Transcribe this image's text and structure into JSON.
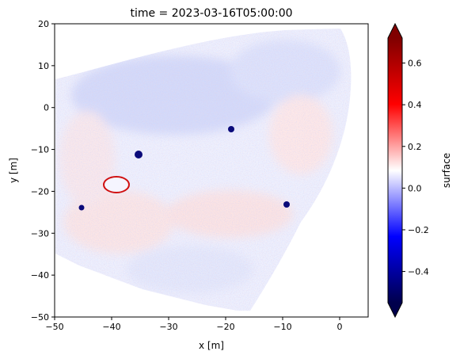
{
  "chart_data": {
    "type": "heatmap",
    "title": "time = 2023-03-16T05:00:00",
    "xlabel": "x [m]",
    "ylabel": "y [m]",
    "xlim": [
      -50,
      5
    ],
    "ylim": [
      -50,
      20
    ],
    "xticks": [
      -50,
      -40,
      -30,
      -20,
      -10,
      0
    ],
    "yticks": [
      -50,
      -40,
      -30,
      -20,
      -10,
      0,
      10,
      20
    ],
    "colorbar": {
      "label": "surface",
      "colormap": "seismic",
      "vmin": -0.55,
      "vmax": 0.72,
      "ticks": [
        -0.4,
        -0.2,
        0.0,
        0.2,
        0.4,
        0.6
      ],
      "extend": "both",
      "colors": [
        "#00004c",
        "#0000ff",
        "#ffffff",
        "#ff0000",
        "#800000"
      ]
    },
    "grid": false,
    "features": [
      {
        "kind": "dark-blue spot",
        "x": -35,
        "y": -8
      },
      {
        "kind": "dark-blue spot",
        "x": -19,
        "y": -4.5
      },
      {
        "kind": "dark-blue spot",
        "x": -45,
        "y": -24
      },
      {
        "kind": "dark-blue spot",
        "x": -9,
        "y": -23
      },
      {
        "kind": "red ring",
        "x": -39,
        "y": -20
      }
    ]
  }
}
